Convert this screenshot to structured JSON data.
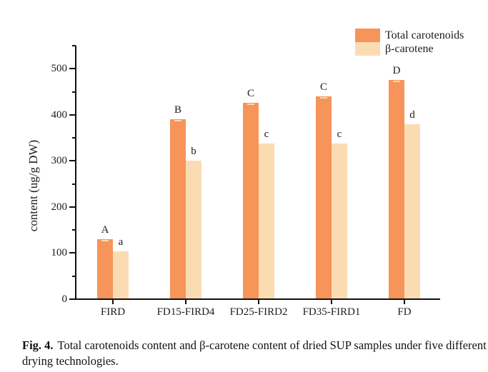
{
  "figure": {
    "caption_label": "Fig. 4.",
    "caption_text": "Total carotenoids content and β-carotene content of dried SUP samples under five different drying technologies."
  },
  "chart_data": {
    "type": "bar",
    "title": "",
    "xlabel": "",
    "ylabel": "content (ug/g DW)",
    "ylim": [
      0,
      550
    ],
    "y_major_ticks": [
      0,
      100,
      200,
      300,
      400,
      500
    ],
    "y_minor_step": 50,
    "grid": false,
    "legend_position": "top-right",
    "categories": [
      "FIRD",
      "FD15-FIRD4",
      "FD25-FIRD2",
      "FD35-FIRD1",
      "FD"
    ],
    "series": [
      {
        "name": "Total carotenoids",
        "color": "#f6945a",
        "values": [
          130,
          390,
          426,
          440,
          476
        ],
        "sig_letters": [
          "A",
          "B",
          "C",
          "C",
          "D"
        ]
      },
      {
        "name": "β-carotene",
        "color": "#fbdcb2",
        "values": [
          104,
          300,
          337,
          338,
          380
        ],
        "sig_letters": [
          "a",
          "b",
          "c",
          "c",
          "d"
        ]
      }
    ]
  }
}
